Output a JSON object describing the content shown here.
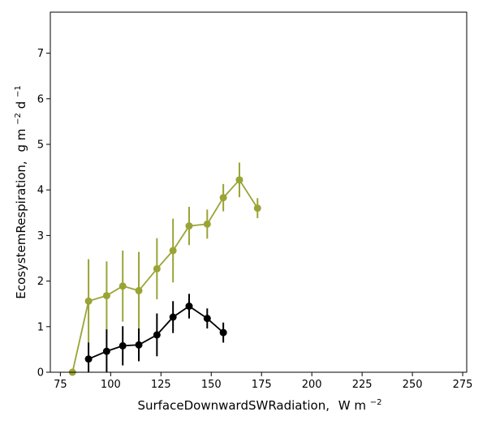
{
  "chart_data": {
    "type": "line",
    "title": "",
    "xlabel": {
      "text": "SurfaceDownwardSWRadiation,",
      "unit_base": "W m",
      "unit_exp": "−2"
    },
    "ylabel": {
      "text": "EcosystemRespiration,",
      "unit_g": "g m",
      "unit_exp1": "−2",
      "unit_d": " d",
      "unit_exp2": "−1"
    },
    "xlim": [
      70,
      277
    ],
    "ylim": [
      0,
      7.9
    ],
    "xticks": [
      75,
      100,
      125,
      150,
      175,
      200,
      225,
      250,
      275
    ],
    "yticks": [
      0,
      1,
      2,
      3,
      4,
      5,
      6,
      7
    ],
    "grid": false,
    "legend": "none",
    "series": [
      {
        "color": "#9aa436",
        "x": [
          81,
          89,
          98,
          106,
          114,
          123,
          131,
          139,
          148,
          156,
          164,
          173
        ],
        "y": [
          0.0,
          1.56,
          1.68,
          1.89,
          1.79,
          2.27,
          2.67,
          3.21,
          3.25,
          3.83,
          4.22,
          3.6
        ],
        "err": [
          0,
          0.92,
          0.75,
          0.78,
          0.85,
          0.67,
          0.7,
          0.42,
          0.32,
          0.3,
          0.38,
          0.22
        ]
      },
      {
        "color": "#000000",
        "x": [
          89,
          98,
          106,
          114,
          123,
          131,
          139,
          148,
          156
        ],
        "y": [
          0.29,
          0.46,
          0.58,
          0.6,
          0.82,
          1.21,
          1.45,
          1.18,
          0.87
        ],
        "err": [
          0.36,
          0.48,
          0.43,
          0.36,
          0.47,
          0.35,
          0.27,
          0.22,
          0.22
        ]
      }
    ]
  }
}
